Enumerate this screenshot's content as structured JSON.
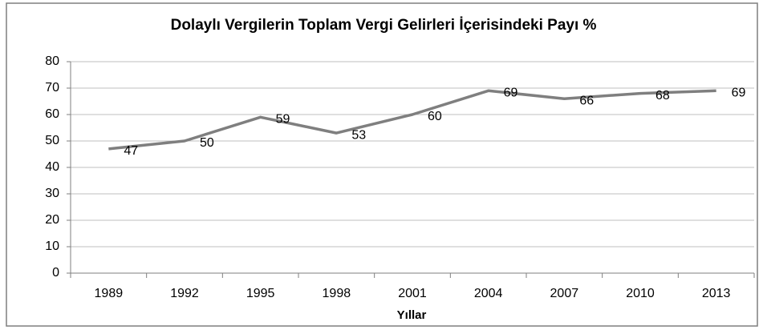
{
  "chart_data": {
    "type": "line",
    "title": "Dolaylı Vergilerin Toplam  Vergi Gelirleri İçerisindeki Payı %",
    "x_label": "Yıllar",
    "categories": [
      "1989",
      "1992",
      "1995",
      "1998",
      "2001",
      "2004",
      "2007",
      "2010",
      "2013"
    ],
    "values": [
      47,
      50,
      59,
      53,
      60,
      69,
      66,
      68,
      69
    ],
    "color": "#7f7f7f",
    "ylim": [
      0,
      80
    ],
    "yticks": [
      0,
      10,
      20,
      30,
      40,
      50,
      60,
      70,
      80
    ],
    "grid": true
  }
}
